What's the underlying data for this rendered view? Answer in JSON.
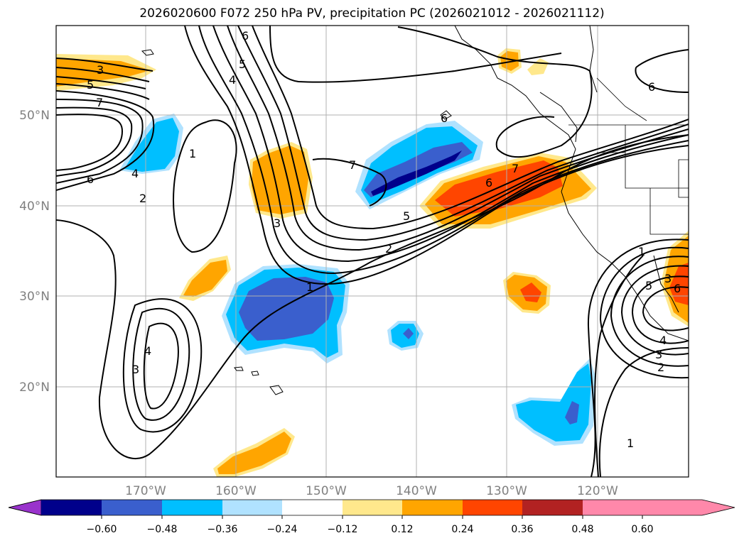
{
  "title": "2026020600 F072 250 hPa PV, precipitation PC (2026021012 - 2026021112)",
  "map": {
    "lat_labels": [
      "50°N",
      "40°N",
      "30°N",
      "20°N"
    ],
    "lon_labels": [
      "170°W",
      "160°W",
      "150°W",
      "140°W",
      "130°W",
      "120°W"
    ]
  },
  "colorbar": {
    "ticks": [
      "−0.60",
      "−0.48",
      "−0.36",
      "−0.24",
      "−0.12",
      "0.12",
      "0.24",
      "0.36",
      "0.48",
      "0.60"
    ],
    "colors": [
      "#9933cc",
      "#00008b",
      "#3a5fcd",
      "#00bfff",
      "#b0e2ff",
      "#ffffff",
      "#ffe88c",
      "#ffa500",
      "#ff4500",
      "#b22222",
      "#ff88aa"
    ]
  },
  "contour_labels": [
    "3",
    "5",
    "7",
    "4",
    "6",
    "1",
    "2",
    "5",
    "4",
    "6",
    "7",
    "6",
    "7",
    "6",
    "5",
    "3",
    "2",
    "1",
    "4",
    "3",
    "1",
    "6",
    "4",
    "3",
    "2",
    "1",
    "6",
    "3",
    "5"
  ]
}
